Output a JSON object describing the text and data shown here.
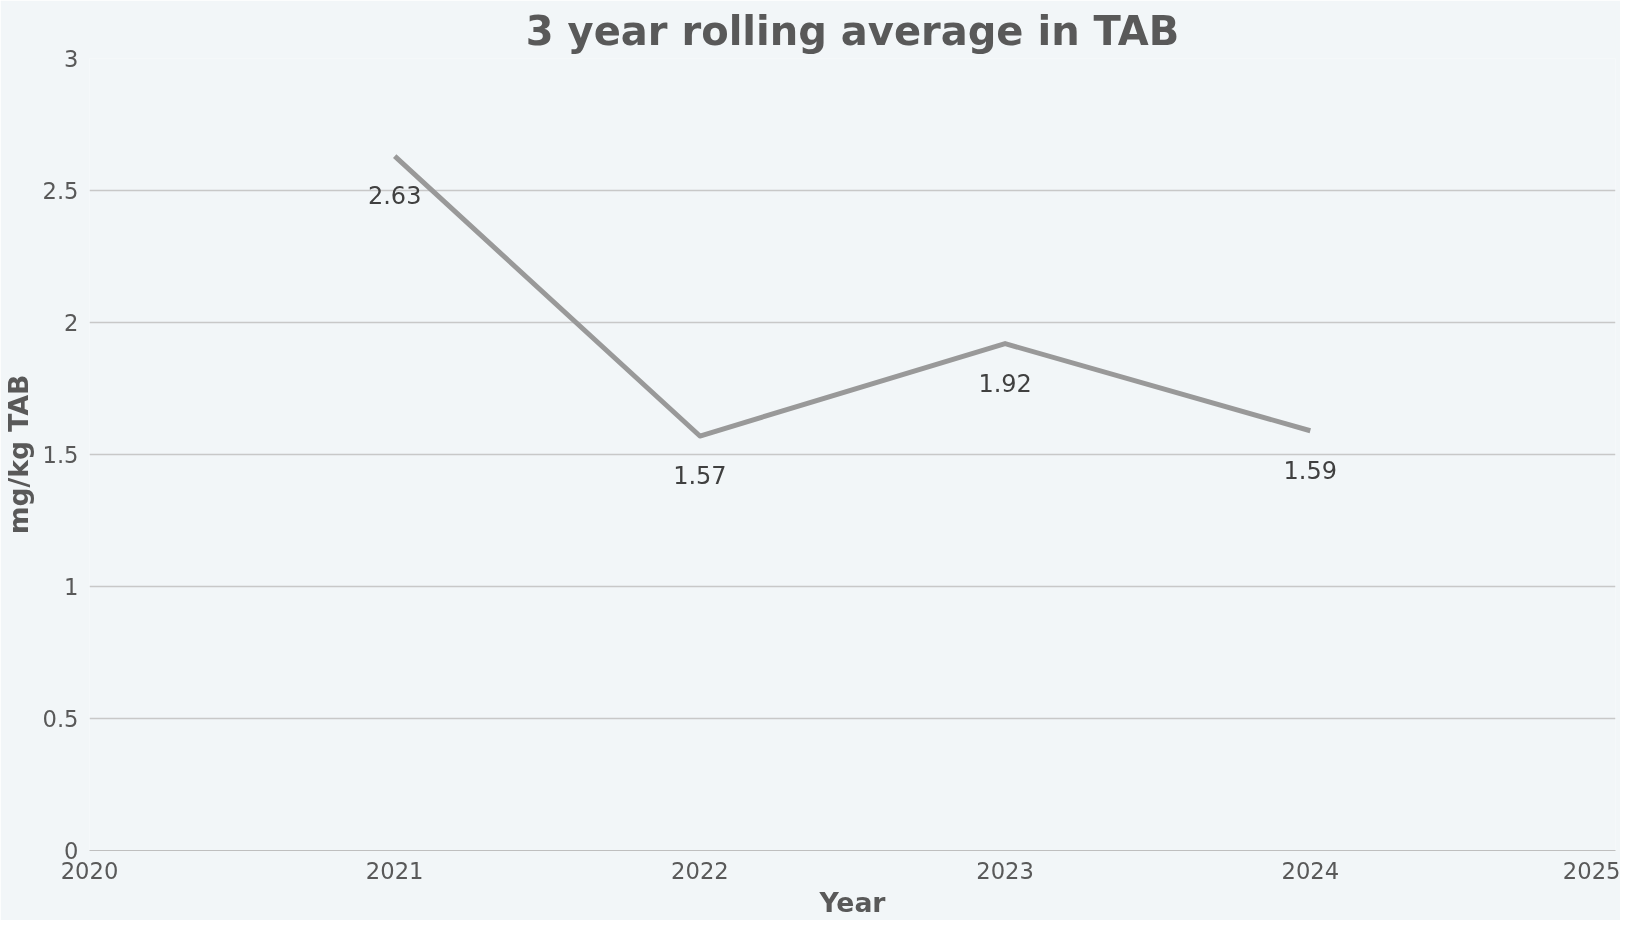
{
  "chart_data": {
    "type": "line",
    "title": "3 year rolling average in TAB",
    "xlabel": "Year",
    "ylabel": "mg/kg TAB",
    "x": [
      2021,
      2022,
      2023,
      2024
    ],
    "series": [
      {
        "color": "#999999",
        "values": [
          2.63,
          1.57,
          1.92,
          1.59
        ]
      }
    ],
    "xlim": [
      2020,
      2025
    ],
    "xticks": [
      2020,
      2021,
      2022,
      2023,
      2024,
      2025
    ],
    "ylim": [
      0,
      3
    ],
    "yticks": [
      0,
      0.5,
      1,
      1.5,
      2,
      2.5,
      3
    ],
    "grid": "y",
    "marker": "none",
    "line_style": "solid",
    "data_labels": true
  }
}
